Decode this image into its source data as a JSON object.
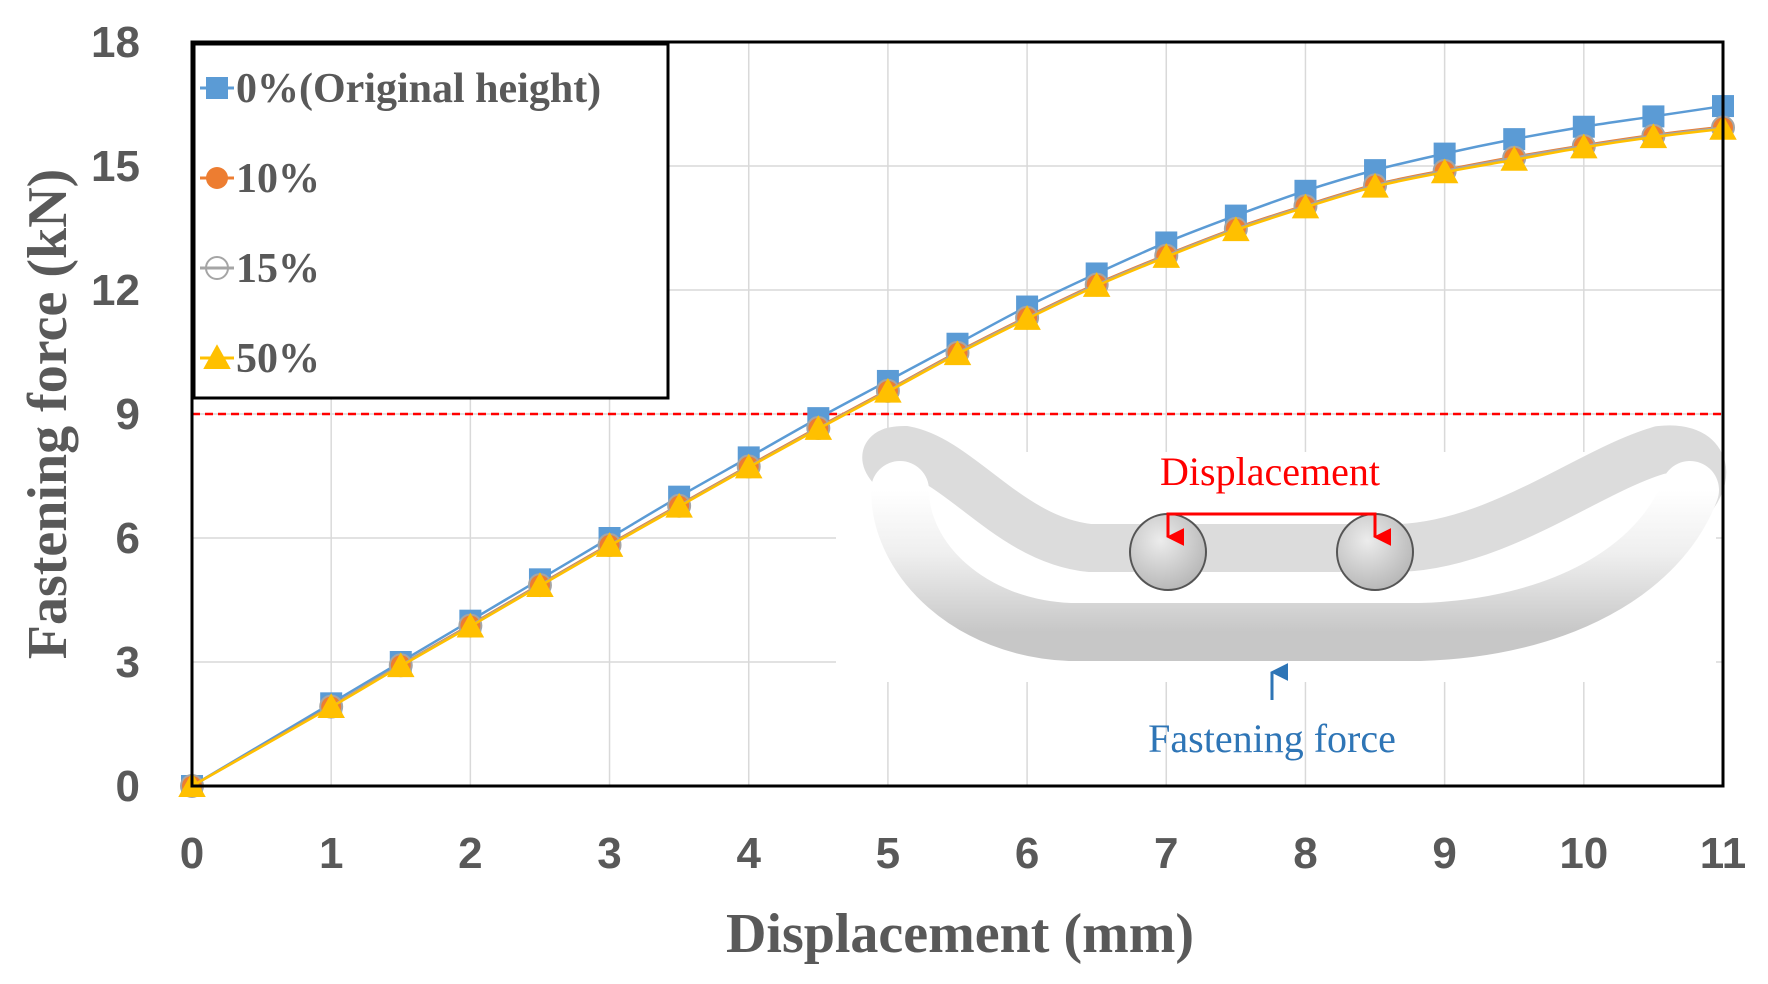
{
  "chart_data": {
    "type": "line",
    "title": "",
    "xlabel": "Displacement (mm)",
    "ylabel": "Fastening force (kN)",
    "xlim": [
      0,
      11
    ],
    "ylim": [
      0,
      18
    ],
    "xticks": [
      0,
      1,
      2,
      3,
      4,
      5,
      6,
      7,
      8,
      9,
      10,
      11
    ],
    "yticks": [
      0,
      3,
      6,
      9,
      12,
      15,
      18
    ],
    "grid": true,
    "legend_position": "top-left",
    "x": [
      0,
      1,
      1.5,
      2,
      2.5,
      3,
      3.5,
      4,
      4.5,
      5,
      5.5,
      6,
      6.5,
      7,
      7.5,
      8,
      8.5,
      9,
      9.5,
      10,
      10.5,
      11
    ],
    "series": [
      {
        "name": "0%(Original height)",
        "color": "#5b9bd5",
        "marker": "square",
        "values": [
          0,
          2.0,
          3.0,
          4.0,
          5.0,
          6.0,
          7.0,
          7.95,
          8.9,
          9.8,
          10.7,
          11.6,
          12.4,
          13.15,
          13.8,
          14.4,
          14.9,
          15.3,
          15.65,
          15.95,
          16.2,
          16.45
        ]
      },
      {
        "name": "10%",
        "color": "#ed7d31",
        "marker": "circle",
        "values": [
          0,
          1.93,
          2.93,
          3.9,
          4.88,
          5.85,
          6.8,
          7.75,
          8.68,
          9.58,
          10.5,
          11.35,
          12.15,
          12.85,
          13.5,
          14.05,
          14.55,
          14.9,
          15.22,
          15.5,
          15.75,
          15.95
        ]
      },
      {
        "name": "15%",
        "color": "#a5a5a5",
        "marker": "open-circle",
        "values": [
          0,
          1.92,
          2.92,
          3.88,
          4.86,
          5.83,
          6.78,
          7.73,
          8.66,
          9.56,
          10.48,
          11.33,
          12.13,
          12.83,
          13.48,
          14.03,
          14.53,
          14.88,
          15.2,
          15.48,
          15.73,
          15.93
        ]
      },
      {
        "name": "50%",
        "color": "#ffc000",
        "marker": "triangle",
        "values": [
          0,
          1.91,
          2.9,
          3.86,
          4.84,
          5.81,
          6.76,
          7.71,
          8.64,
          9.54,
          10.45,
          11.3,
          12.1,
          12.8,
          13.45,
          14.0,
          14.5,
          14.85,
          15.15,
          15.45,
          15.7,
          15.9
        ]
      }
    ],
    "reference_line": {
      "y": 9,
      "color": "#ff0000",
      "style": "dashed"
    },
    "annotations": {
      "inset_displacement": "Displacement",
      "inset_force": "Fastening force"
    }
  },
  "colors": {
    "tick_text": "#595959",
    "grid": "#d9d9d9",
    "inset_red": "#ff0000",
    "inset_blue": "#2e75b6"
  }
}
